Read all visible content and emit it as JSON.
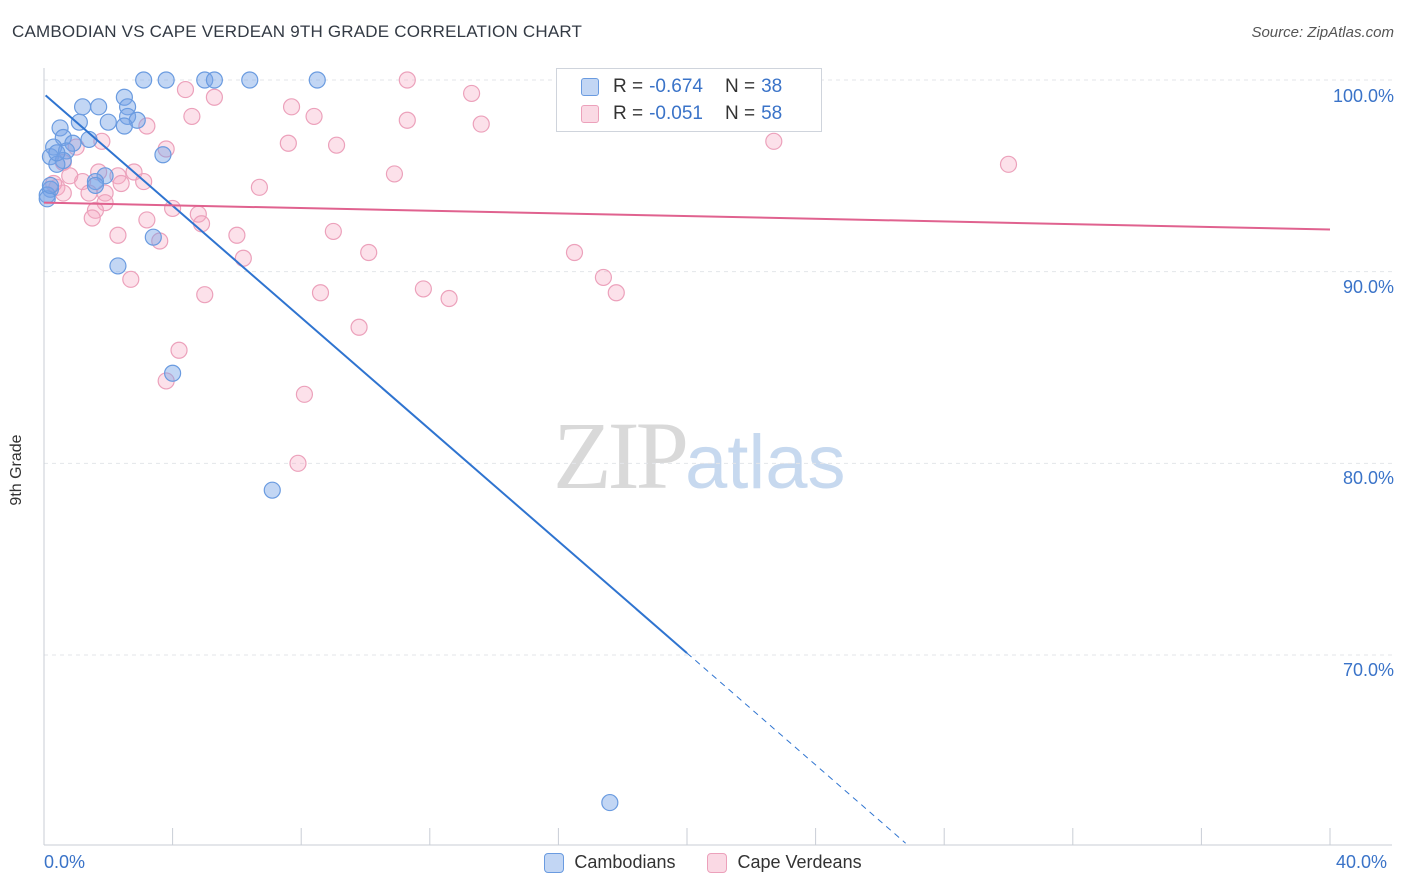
{
  "header": {
    "title": "CAMBODIAN VS CAPE VERDEAN 9TH GRADE CORRELATION CHART",
    "source": "Source: ZipAtlas.com"
  },
  "watermark": {
    "zip": "ZIP",
    "atlas": "atlas"
  },
  "legend": {
    "rows": [
      {
        "r_label": "R =",
        "r_value": "-0.674",
        "n_label": "N =",
        "n_value": "38"
      },
      {
        "r_label": "R =",
        "r_value": "-0.051",
        "n_label": "N =",
        "n_value": "58"
      }
    ],
    "bottom": [
      {
        "label": "Cambodians"
      },
      {
        "label": "Cape Verdeans"
      }
    ]
  },
  "colors": {
    "blue": "#3a73c8",
    "blue_line": "#2f74d0",
    "blue_fill": "rgba(120,165,230,0.45)",
    "blue_stroke": "#6a9be0",
    "pink_line": "#e0628f",
    "pink_fill": "rgba(245,170,195,0.35)",
    "pink_stroke": "#eca1bb",
    "grid": "#e3e6ea"
  },
  "chart_data": {
    "type": "scatter",
    "title": "CAMBODIAN VS CAPE VERDEAN 9TH GRADE CORRELATION CHART",
    "xlabel": "",
    "ylabel": "9th Grade",
    "xlim": [
      0,
      40
    ],
    "ylim": [
      61.5,
      101
    ],
    "x_tick_labels": [
      {
        "x": 0,
        "label": "0.0%"
      },
      {
        "x": 40,
        "label": "40.0%"
      }
    ],
    "y_tick_labels": [
      {
        "y": 100,
        "label": "100.0%"
      },
      {
        "y": 90,
        "label": "90.0%"
      },
      {
        "y": 80,
        "label": "80.0%"
      },
      {
        "y": 70,
        "label": "70.0%"
      }
    ],
    "series": [
      {
        "name": "Cambodians",
        "color": "blue",
        "R": -0.674,
        "N": 38,
        "trend": {
          "x0": 0.05,
          "y0": 99.2,
          "x1": 20.0,
          "y1": 70.1,
          "dash_to_x": 26.8
        },
        "points": [
          [
            3.1,
            100
          ],
          [
            3.8,
            100
          ],
          [
            5.0,
            100
          ],
          [
            5.3,
            100
          ],
          [
            6.4,
            100
          ],
          [
            8.5,
            100
          ],
          [
            2.5,
            99.1
          ],
          [
            1.2,
            98.6
          ],
          [
            1.7,
            98.6
          ],
          [
            2.6,
            98.6
          ],
          [
            2.6,
            98.1
          ],
          [
            2.9,
            97.9
          ],
          [
            1.1,
            97.8
          ],
          [
            2.0,
            97.8
          ],
          [
            2.5,
            97.6
          ],
          [
            0.5,
            97.5
          ],
          [
            0.6,
            97.0
          ],
          [
            1.4,
            96.9
          ],
          [
            0.9,
            96.7
          ],
          [
            0.3,
            96.5
          ],
          [
            0.7,
            96.3
          ],
          [
            3.7,
            96.1
          ],
          [
            0.2,
            96.0
          ],
          [
            0.6,
            95.8
          ],
          [
            0.4,
            95.6
          ],
          [
            1.9,
            95.0
          ],
          [
            1.6,
            94.7
          ],
          [
            1.6,
            94.5
          ],
          [
            0.2,
            94.3
          ],
          [
            0.1,
            94.0
          ],
          [
            0.1,
            93.8
          ],
          [
            3.4,
            91.8
          ],
          [
            2.3,
            90.3
          ],
          [
            4.0,
            84.7
          ],
          [
            7.1,
            78.6
          ],
          [
            17.6,
            62.3
          ],
          [
            0.2,
            94.5
          ],
          [
            0.4,
            96.2
          ]
        ]
      },
      {
        "name": "Cape Verdeans",
        "color": "pink",
        "R": -0.051,
        "N": 58,
        "trend": {
          "x0": 0.0,
          "y0": 93.6,
          "x1": 40.0,
          "y1": 92.2
        },
        "points": [
          [
            11.3,
            100
          ],
          [
            13.3,
            99.3
          ],
          [
            4.4,
            99.5
          ],
          [
            5.3,
            99.1
          ],
          [
            7.7,
            98.6
          ],
          [
            8.4,
            98.1
          ],
          [
            4.6,
            98.1
          ],
          [
            11.3,
            97.9
          ],
          [
            13.6,
            97.7
          ],
          [
            3.2,
            97.6
          ],
          [
            7.6,
            96.7
          ],
          [
            9.1,
            96.6
          ],
          [
            3.8,
            96.4
          ],
          [
            22.7,
            96.8
          ],
          [
            1.8,
            96.8
          ],
          [
            1.0,
            96.5
          ],
          [
            0.6,
            95.7
          ],
          [
            30.0,
            95.6
          ],
          [
            1.7,
            95.2
          ],
          [
            2.8,
            95.2
          ],
          [
            10.9,
            95.1
          ],
          [
            2.3,
            95.0
          ],
          [
            3.1,
            94.7
          ],
          [
            1.2,
            94.7
          ],
          [
            2.4,
            94.6
          ],
          [
            0.4,
            94.4
          ],
          [
            6.7,
            94.4
          ],
          [
            1.4,
            94.1
          ],
          [
            1.9,
            94.1
          ],
          [
            0.6,
            94.1
          ],
          [
            1.9,
            93.6
          ],
          [
            1.6,
            93.2
          ],
          [
            4.0,
            93.3
          ],
          [
            4.8,
            93.0
          ],
          [
            1.5,
            92.8
          ],
          [
            3.2,
            92.7
          ],
          [
            4.9,
            92.5
          ],
          [
            9.0,
            92.1
          ],
          [
            2.3,
            91.9
          ],
          [
            6.0,
            91.9
          ],
          [
            3.6,
            91.6
          ],
          [
            10.1,
            91.0
          ],
          [
            16.5,
            91.0
          ],
          [
            6.2,
            90.7
          ],
          [
            2.7,
            89.6
          ],
          [
            17.4,
            89.7
          ],
          [
            11.8,
            89.1
          ],
          [
            8.6,
            88.9
          ],
          [
            5.0,
            88.8
          ],
          [
            12.6,
            88.6
          ],
          [
            17.8,
            88.9
          ],
          [
            9.8,
            87.1
          ],
          [
            4.2,
            85.9
          ],
          [
            3.8,
            84.3
          ],
          [
            8.1,
            83.6
          ],
          [
            7.9,
            80.0
          ],
          [
            0.3,
            94.6
          ],
          [
            0.8,
            95.0
          ]
        ]
      }
    ]
  }
}
